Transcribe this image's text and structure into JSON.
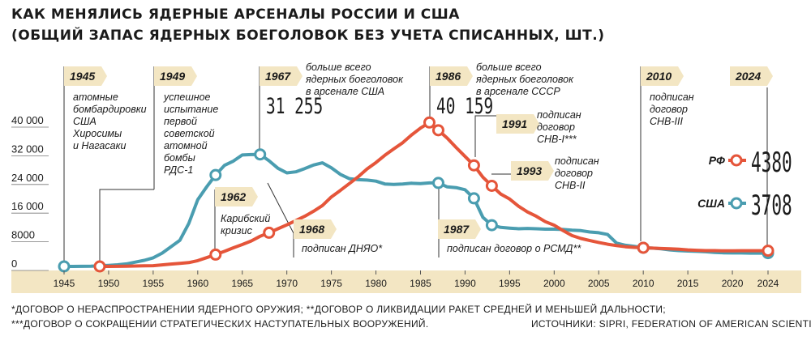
{
  "title_line1": "КАК МЕНЯЛИСЬ ЯДЕРНЫЕ АРСЕНАЛЫ РОССИИ И США",
  "title_line2": "(ОБЩИЙ ЗАПАС ЯДЕРНЫХ БОЕГОЛОВОК БЕЗ УЧЕТА СПИСАННЫХ, ШТ.)",
  "footnote1": "*ДОГОВОР О НЕРАСПРОСТРАНЕНИИ ЯДЕРНОГО ОРУЖИЯ; **ДОГОВОР О ЛИКВИДАЦИИ РАКЕТ СРЕДНЕЙ И МЕНЬШЕЙ ДАЛЬНОСТИ;",
  "footnote2": "***ДОГОВОР О СОКРАЩЕНИИ СТРАТЕГИЧЕСКИХ НАСТУПАТЕЛЬНЫХ ВООРУЖЕНИЙ.",
  "sources": "ИСТОЧНИКИ: SIPRI, FEDERATION OF AMERICAN SCIENTISTS.",
  "colors": {
    "usa": "#4a9db0",
    "russia": "#e5553a",
    "axis_band": "#f3e6c3",
    "year_label_bg": "#f3e6c3"
  },
  "chart_data": {
    "type": "line",
    "xlim": [
      1945,
      2024
    ],
    "ylim": [
      0,
      40000
    ],
    "y_ticks": [
      {
        "value": 0,
        "label": "0"
      },
      {
        "value": 8000,
        "label": "8000"
      },
      {
        "value": 16000,
        "label": "16 000"
      },
      {
        "value": 24000,
        "label": "24 000"
      },
      {
        "value": 32000,
        "label": "32 000"
      },
      {
        "value": 40000,
        "label": "40 000"
      }
    ],
    "x_ticks": [
      {
        "value": 1945,
        "label": "1945"
      },
      {
        "value": 1950,
        "label": "1950"
      },
      {
        "value": 1955,
        "label": "1955"
      },
      {
        "value": 1960,
        "label": "1960"
      },
      {
        "value": 1965,
        "label": "1965"
      },
      {
        "value": 1970,
        "label": "1970"
      },
      {
        "value": 1975,
        "label": "1975"
      },
      {
        "value": 1980,
        "label": "1980"
      },
      {
        "value": 1985,
        "label": "1985"
      },
      {
        "value": 1990,
        "label": "1990"
      },
      {
        "value": 1995,
        "label": "1995"
      },
      {
        "value": 2000,
        "label": "2000"
      },
      {
        "value": 2005,
        "label": "2005"
      },
      {
        "value": 2010,
        "label": "2010"
      },
      {
        "value": 2015,
        "label": "2015"
      },
      {
        "value": 2020,
        "label": "2020"
      },
      {
        "value": 2024,
        "label": "2024"
      }
    ],
    "series": [
      {
        "name": "США",
        "key": "usa",
        "x": [
          1945,
          1946,
          1947,
          1948,
          1949,
          1950,
          1951,
          1952,
          1953,
          1954,
          1955,
          1956,
          1957,
          1958,
          1959,
          1960,
          1961,
          1962,
          1963,
          1964,
          1965,
          1966,
          1967,
          1968,
          1969,
          1970,
          1971,
          1972,
          1973,
          1974,
          1975,
          1976,
          1977,
          1978,
          1979,
          1980,
          1981,
          1982,
          1983,
          1984,
          1985,
          1986,
          1987,
          1988,
          1989,
          1990,
          1991,
          1992,
          1993,
          1994,
          1995,
          1996,
          1997,
          1998,
          1999,
          2000,
          2001,
          2002,
          2003,
          2004,
          2005,
          2006,
          2007,
          2008,
          2009,
          2010,
          2011,
          2012,
          2013,
          2014,
          2015,
          2016,
          2017,
          2018,
          2019,
          2020,
          2021,
          2022,
          2023,
          2024
        ],
        "values": [
          2,
          9,
          13,
          50,
          170,
          300,
          450,
          700,
          1200,
          1700,
          2400,
          3700,
          5500,
          7300,
          12000,
          18600,
          22200,
          25500,
          28200,
          29400,
          31100,
          31200,
          31255,
          29500,
          27400,
          26100,
          26400,
          27300,
          28300,
          28900,
          27500,
          25700,
          24500,
          24200,
          24100,
          23800,
          23000,
          22900,
          23000,
          23200,
          23100,
          23300,
          23300,
          22200,
          22000,
          21400,
          19000,
          13700,
          11500,
          10900,
          10700,
          10500,
          10600,
          10500,
          10400,
          10400,
          10300,
          10100,
          10000,
          9600,
          9400,
          8900,
          6500,
          5900,
          5600,
          5200,
          5100,
          4900,
          4600,
          4400,
          4300,
          4200,
          4100,
          3900,
          3800,
          3750,
          3750,
          3708,
          3708,
          3708
        ]
      },
      {
        "name": "РФ",
        "key": "russia",
        "x": [
          1949,
          1950,
          1951,
          1952,
          1953,
          1954,
          1955,
          1956,
          1957,
          1958,
          1959,
          1960,
          1961,
          1962,
          1963,
          1964,
          1965,
          1966,
          1967,
          1968,
          1969,
          1970,
          1971,
          1972,
          1973,
          1974,
          1975,
          1976,
          1977,
          1978,
          1979,
          1980,
          1981,
          1982,
          1983,
          1984,
          1985,
          1986,
          1987,
          1988,
          1989,
          1990,
          1991,
          1992,
          1993,
          1994,
          1995,
          1996,
          1997,
          1998,
          1999,
          2000,
          2001,
          2002,
          2003,
          2004,
          2005,
          2006,
          2007,
          2008,
          2009,
          2010,
          2011,
          2012,
          2013,
          2014,
          2015,
          2016,
          2017,
          2018,
          2019,
          2020,
          2021,
          2022,
          2023,
          2024
        ],
        "values": [
          1,
          5,
          25,
          50,
          120,
          150,
          200,
          420,
          660,
          870,
          1060,
          1600,
          2450,
          3300,
          4200,
          5200,
          6100,
          7100,
          8400,
          9400,
          10500,
          11600,
          12800,
          14000,
          15400,
          17000,
          19400,
          21200,
          23100,
          25000,
          27200,
          29000,
          31000,
          32800,
          34500,
          36700,
          38600,
          40159,
          38000,
          35800,
          33200,
          30700,
          28200,
          24900,
          22500,
          20200,
          18800,
          16800,
          15200,
          14000,
          12500,
          11500,
          10000,
          8600,
          7800,
          7200,
          6700,
          6200,
          5800,
          5500,
          5300,
          5200,
          5100,
          5000,
          4900,
          4800,
          4600,
          4500,
          4400,
          4400,
          4350,
          4350,
          4380,
          4380,
          4380,
          4380
        ]
      }
    ],
    "markers": {
      "usa": [
        1945,
        1962,
        1967,
        1987,
        1991,
        1993,
        2010,
        2024
      ],
      "russia": [
        1949,
        1962,
        1968,
        1986,
        1987,
        1991,
        1993,
        2010,
        2024
      ]
    },
    "annotations": [
      {
        "year": "1945",
        "lines": [
          "атомные",
          "бомбардировки",
          "США",
          "Хиросимы",
          "и Нагасаки"
        ]
      },
      {
        "year": "1949",
        "lines": [
          "успешное",
          "испытание",
          "первой",
          "советской",
          "атомной",
          "бомбы",
          "РДС-1"
        ]
      },
      {
        "year": "1967",
        "value_label": "31 255",
        "lines": [
          "больше всего",
          "ядерных боеголовок",
          "в арсенале США"
        ]
      },
      {
        "year": "1986",
        "value_label": "40 159",
        "lines": [
          "больше всего",
          "ядерных боеголовок",
          "в арсенале СССР"
        ]
      },
      {
        "year": "2010",
        "lines": [
          "подписан",
          "договор",
          "СНВ-III"
        ]
      },
      {
        "year": "2024"
      },
      {
        "year": "1991",
        "lines": [
          "подписан",
          "договор",
          "СНВ-I***"
        ]
      },
      {
        "year": "1993",
        "lines": [
          "подписан",
          "договор",
          "СНВ-II"
        ]
      },
      {
        "year": "1962",
        "lines": [
          "Карибский",
          "кризис"
        ]
      },
      {
        "year": "1968",
        "lines": [
          "подписан ДНЯО*"
        ]
      },
      {
        "year": "1987",
        "lines": [
          "подписан договор о РСМД**"
        ]
      }
    ],
    "legend": [
      {
        "name": "РФ",
        "key": "russia",
        "value_label": "4380"
      },
      {
        "name": "США",
        "key": "usa",
        "value_label": "3708"
      }
    ]
  }
}
